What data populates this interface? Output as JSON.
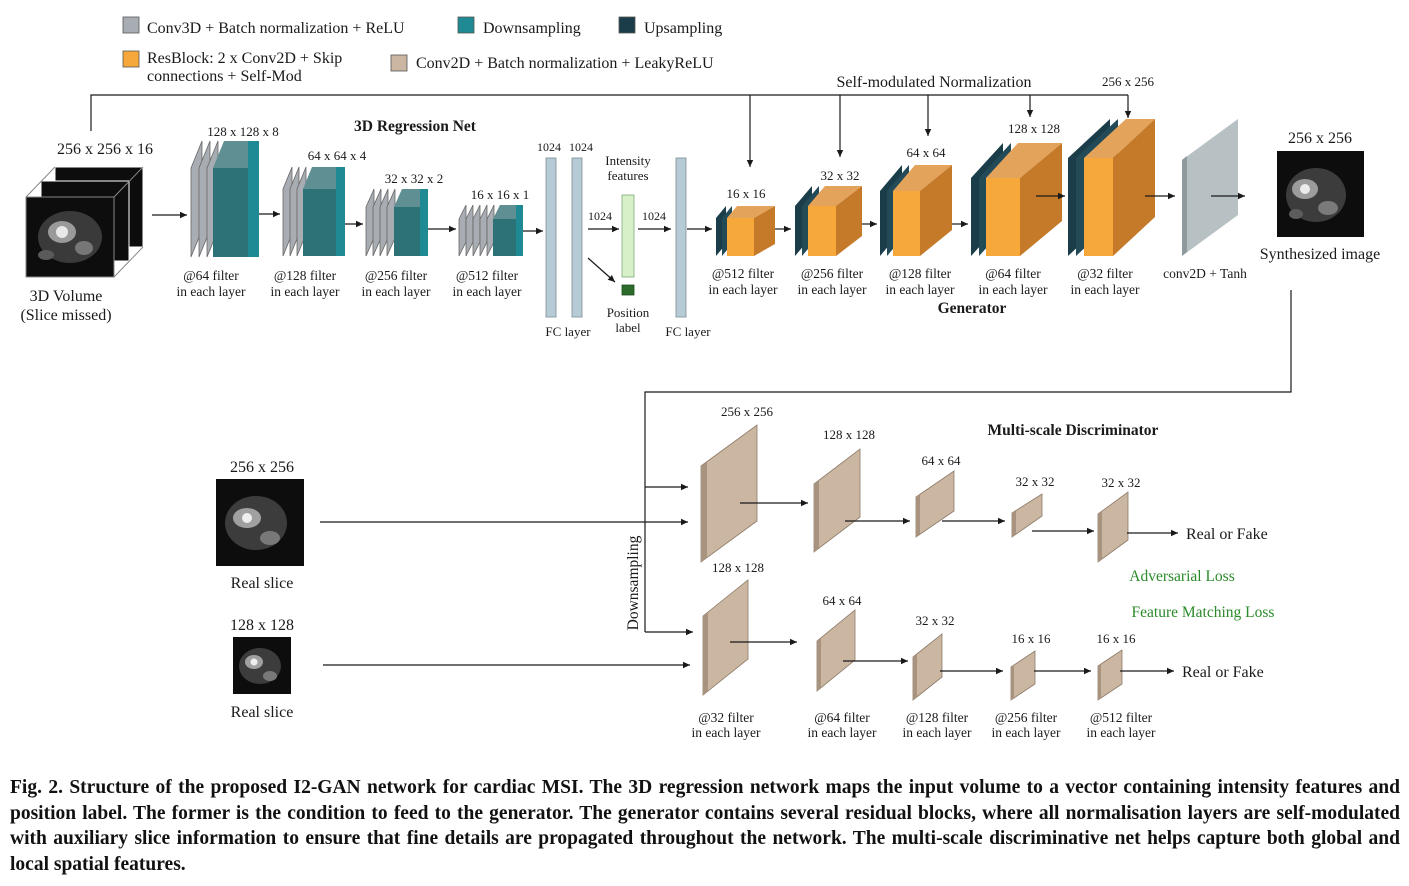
{
  "colors": {
    "conv3d": "#a8adb3",
    "downsampling": "#1f8a93",
    "upsampling": "#1b3d49",
    "resblock": "#f6a93a",
    "resblock_side": "#c57a2a",
    "conv2d": "#cbb6a2",
    "conv2d_side": "#a8937f",
    "fc": "#b6cbd5",
    "intensity": "#d8f0c8",
    "position": "#2c6b2c",
    "loss_text": "#2a8a2a"
  },
  "legend": {
    "conv3d": "Conv3D + Batch normalization + ReLU",
    "downsampling": "Downsampling",
    "upsampling": "Upsampling",
    "resblock_line1": "ResBlock: 2 x Conv2D + Skip",
    "resblock_line2": "connections + Self-Mod",
    "conv2d": "Conv2D + Batch normalization + LeakyReLU"
  },
  "input": {
    "size": "256 x 256 x 16",
    "label_line1": "3D Volume",
    "label_line2": "(Slice missed)"
  },
  "regression": {
    "title": "3D Regression Net",
    "blocks": [
      {
        "size": "128 x 128 x 8",
        "filter": "@64 filter",
        "sub": "in each layer"
      },
      {
        "size": "64 x 64 x 4",
        "filter": "@128 filter",
        "sub": "in each layer"
      },
      {
        "size": "32 x 32 x 2",
        "filter": "@256 filter",
        "sub": "in each layer"
      },
      {
        "size": "16 x 16 x 1",
        "filter": "@512 filter",
        "sub": "in each layer"
      }
    ],
    "fc_dims": [
      "1024",
      "1024"
    ],
    "fc_label": "FC layer",
    "intensity_line1": "Intensity",
    "intensity_line2": "features",
    "dim_in": "1024",
    "dim_out": "1024",
    "position_line1": "Position",
    "position_line2": "label",
    "fc2_label": "FC layer"
  },
  "generator": {
    "title": "Generator",
    "selfmod": "Self-modulated Normalization",
    "blocks": [
      {
        "size": "16 x 16",
        "filter": "@512 filter",
        "sub": "in each layer"
      },
      {
        "size": "32 x 32",
        "filter": "@256 filter",
        "sub": "in each layer"
      },
      {
        "size": "64 x 64",
        "filter": "@128 filter",
        "sub": "in each layer"
      },
      {
        "size": "128 x 128",
        "filter": "@64 filter",
        "sub": "in each layer"
      },
      {
        "size": "256 x 256",
        "filter": "@32 filter",
        "sub": "in each layer"
      }
    ],
    "final_label": "conv2D + Tanh",
    "output_size": "256 x 256",
    "output_label": "Synthesized image"
  },
  "discriminator": {
    "title": "Multi-scale Discriminator",
    "downsampling_label": "Downsampling",
    "real1_size": "256 x 256",
    "real1_label": "Real slice",
    "real2_size": "128 x 128",
    "real2_label": "Real slice",
    "top_sizes": [
      "256 x 256",
      "128 x 128",
      "64 x 64",
      "32 x 32",
      "32 x 32"
    ],
    "bottom_sizes": [
      "128 x 128",
      "64 x 64",
      "32 x 32",
      "16 x 16",
      "16 x 16"
    ],
    "filters": [
      {
        "filter": "@32 filter",
        "sub": "in each layer"
      },
      {
        "filter": "@64 filter",
        "sub": "in each layer"
      },
      {
        "filter": "@128 filter",
        "sub": "in each layer"
      },
      {
        "filter": "@256 filter",
        "sub": "in each layer"
      },
      {
        "filter": "@512 filter",
        "sub": "in each layer"
      }
    ],
    "output_top": "Real or Fake",
    "output_bottom": "Real or Fake",
    "adv_loss": "Adversarial Loss",
    "fm_loss": "Feature Matching Loss"
  },
  "caption": "Fig. 2. Structure of the proposed I2-GAN network for cardiac MSI. The 3D regression network maps the input volume to a vector containing intensity features and position label. The former is the condition to feed to the generator. The generator contains several residual blocks, where all normalisation layers are self-modulated with auxiliary slice information to ensure that fine details are propagated throughout the network. The multi-scale discriminative net helps capture both global and local spatial features."
}
